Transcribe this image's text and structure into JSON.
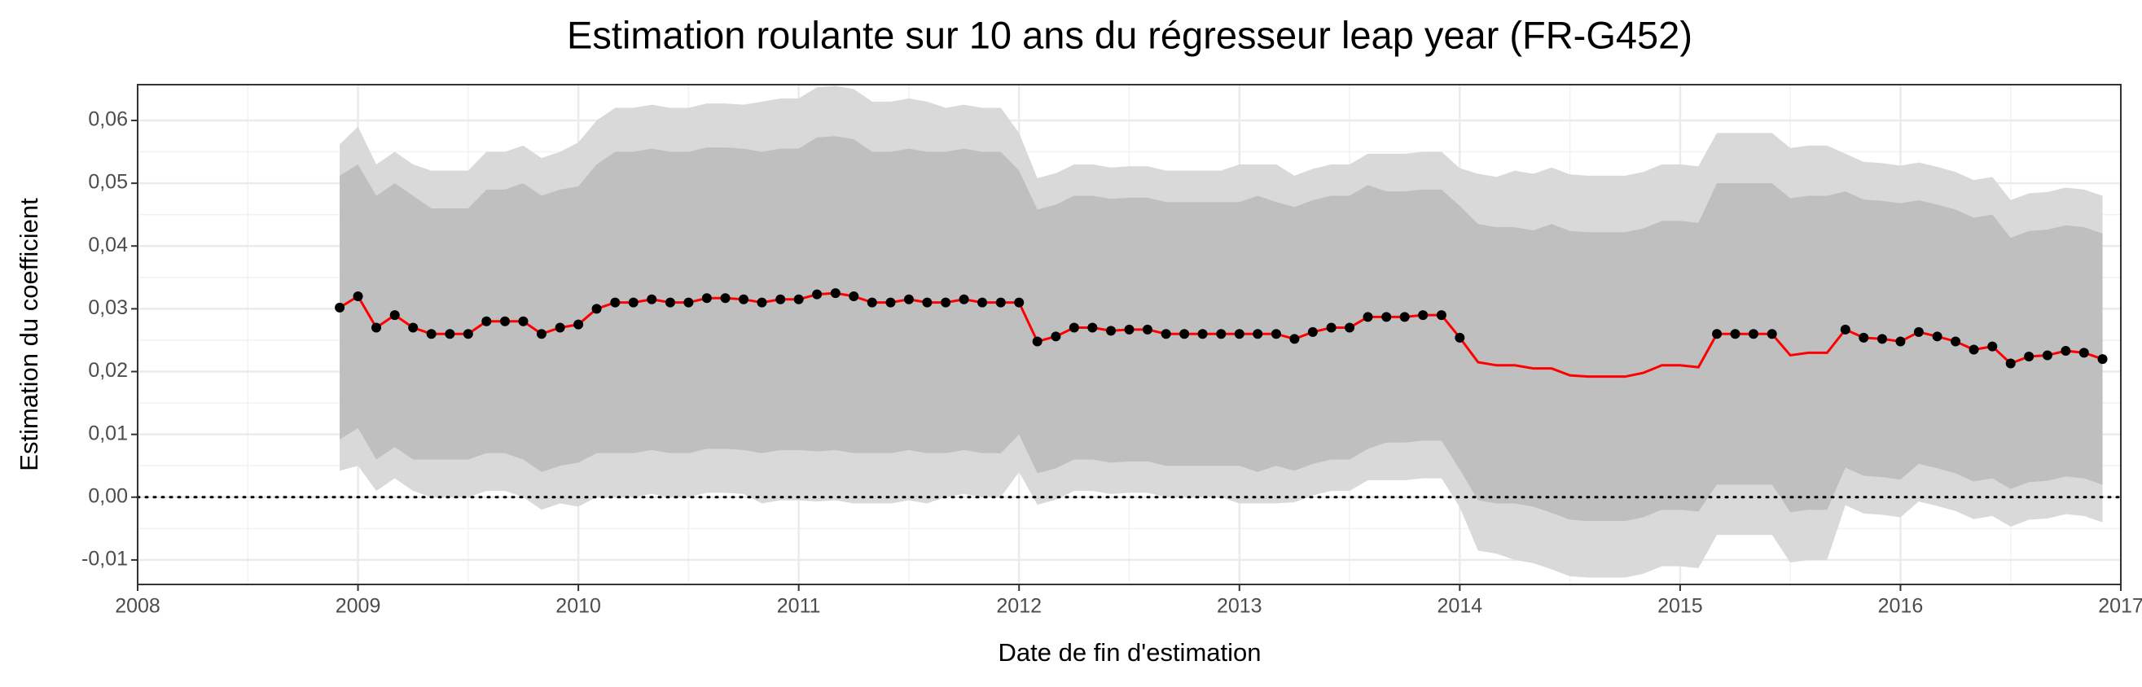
{
  "chart_data": {
    "type": "line",
    "title": "Estimation roulante sur 10 ans du régresseur leap year (FR-G452)",
    "x_label": "Date de fin d'estimation",
    "y_label": "Estimation du coefficient",
    "x": [
      2008.917,
      2009.0,
      2009.083,
      2009.167,
      2009.25,
      2009.333,
      2009.417,
      2009.5,
      2009.583,
      2009.667,
      2009.75,
      2009.833,
      2009.917,
      2010.0,
      2010.083,
      2010.167,
      2010.25,
      2010.333,
      2010.417,
      2010.5,
      2010.583,
      2010.667,
      2010.75,
      2010.833,
      2010.917,
      2011.0,
      2011.083,
      2011.167,
      2011.25,
      2011.333,
      2011.417,
      2011.5,
      2011.583,
      2011.667,
      2011.75,
      2011.833,
      2011.917,
      2012.0,
      2012.083,
      2012.167,
      2012.25,
      2012.333,
      2012.417,
      2012.5,
      2012.583,
      2012.667,
      2012.75,
      2012.833,
      2012.917,
      2013.0,
      2013.083,
      2013.167,
      2013.25,
      2013.333,
      2013.417,
      2013.5,
      2013.583,
      2013.667,
      2013.75,
      2013.833,
      2013.917,
      2014.0,
      2014.083,
      2014.167,
      2014.25,
      2014.333,
      2014.417,
      2014.5,
      2014.583,
      2014.667,
      2014.75,
      2014.833,
      2014.917,
      2015.0,
      2015.083,
      2015.167,
      2015.25,
      2015.333,
      2015.417,
      2015.5,
      2015.583,
      2015.667,
      2015.75,
      2015.833,
      2015.917,
      2016.0,
      2016.083,
      2016.167,
      2016.25,
      2016.333,
      2016.417,
      2016.5,
      2016.583,
      2016.667,
      2016.75,
      2016.833,
      2016.917
    ],
    "series": [
      {
        "color": "#ff0000",
        "point_color": "#000000",
        "inner_band_color": "#bfbfbf",
        "outer_band_color": "#d9d9d9",
        "values": [
          0.0302,
          0.032,
          0.027,
          0.029,
          0.027,
          0.026,
          0.026,
          0.026,
          0.028,
          0.028,
          0.028,
          0.026,
          0.027,
          0.0275,
          0.03,
          0.031,
          0.031,
          0.0315,
          0.031,
          0.031,
          0.0317,
          0.0317,
          0.0315,
          0.031,
          0.0315,
          0.0315,
          0.0323,
          0.0325,
          0.032,
          0.031,
          0.031,
          0.0315,
          0.031,
          0.031,
          0.0315,
          0.031,
          0.031,
          0.031,
          0.0248,
          0.0256,
          0.027,
          0.027,
          0.0265,
          0.0267,
          0.0267,
          0.026,
          0.026,
          0.026,
          0.026,
          0.026,
          0.026,
          0.026,
          0.0252,
          0.0263,
          0.027,
          0.027,
          0.0287,
          0.0287,
          0.0287,
          0.029,
          0.029,
          0.0254,
          0.0215,
          0.021,
          0.021,
          0.0205,
          0.0205,
          0.0194,
          0.0192,
          0.0192,
          0.0192,
          0.0198,
          0.021,
          0.021,
          0.0207,
          0.026,
          0.026,
          0.026,
          0.026,
          0.0226,
          0.023,
          0.023,
          0.0267,
          0.0254,
          0.0252,
          0.0248,
          0.0263,
          0.0256,
          0.0248,
          0.0235,
          0.024,
          0.0213,
          0.0224,
          0.0226,
          0.0233,
          0.023,
          0.022
        ],
        "inner_error": [
          0.021,
          0.021,
          0.021,
          0.021,
          0.021,
          0.02,
          0.02,
          0.02,
          0.021,
          0.021,
          0.022,
          0.022,
          0.022,
          0.022,
          0.023,
          0.024,
          0.024,
          0.024,
          0.024,
          0.024,
          0.024,
          0.024,
          0.024,
          0.024,
          0.024,
          0.024,
          0.025,
          0.025,
          0.025,
          0.024,
          0.024,
          0.024,
          0.024,
          0.024,
          0.024,
          0.024,
          0.024,
          0.021,
          0.021,
          0.021,
          0.021,
          0.021,
          0.021,
          0.021,
          0.021,
          0.021,
          0.021,
          0.021,
          0.021,
          0.021,
          0.022,
          0.021,
          0.021,
          0.021,
          0.021,
          0.021,
          0.021,
          0.02,
          0.02,
          0.02,
          0.02,
          0.021,
          0.022,
          0.022,
          0.022,
          0.022,
          0.023,
          0.023,
          0.023,
          0.023,
          0.023,
          0.023,
          0.023,
          0.023,
          0.023,
          0.024,
          0.024,
          0.024,
          0.024,
          0.025,
          0.025,
          0.025,
          0.022,
          0.022,
          0.022,
          0.022,
          0.021,
          0.021,
          0.021,
          0.021,
          0.021,
          0.02,
          0.02,
          0.02,
          0.02,
          0.02,
          0.02
        ],
        "outer_error": [
          0.026,
          0.027,
          0.026,
          0.026,
          0.026,
          0.026,
          0.026,
          0.026,
          0.027,
          0.027,
          0.028,
          0.028,
          0.028,
          0.029,
          0.03,
          0.031,
          0.031,
          0.031,
          0.031,
          0.031,
          0.031,
          0.031,
          0.031,
          0.032,
          0.032,
          0.032,
          0.033,
          0.033,
          0.033,
          0.032,
          0.032,
          0.032,
          0.032,
          0.031,
          0.031,
          0.031,
          0.031,
          0.027,
          0.026,
          0.026,
          0.026,
          0.026,
          0.026,
          0.026,
          0.026,
          0.026,
          0.026,
          0.026,
          0.026,
          0.027,
          0.027,
          0.027,
          0.026,
          0.026,
          0.026,
          0.026,
          0.026,
          0.026,
          0.026,
          0.026,
          0.026,
          0.027,
          0.03,
          0.03,
          0.031,
          0.031,
          0.032,
          0.032,
          0.032,
          0.032,
          0.032,
          0.032,
          0.032,
          0.032,
          0.032,
          0.032,
          0.032,
          0.032,
          0.032,
          0.033,
          0.033,
          0.033,
          0.028,
          0.028,
          0.028,
          0.028,
          0.027,
          0.027,
          0.027,
          0.027,
          0.027,
          0.026,
          0.026,
          0.026,
          0.026,
          0.026,
          0.026
        ]
      }
    ],
    "xlim": [
      2008,
      2017
    ],
    "xticks": [
      2008,
      2009,
      2010,
      2011,
      2012,
      2013,
      2014,
      2015,
      2016,
      2017
    ],
    "ylim": [
      -0.0139,
      0.0657
    ],
    "yticks": [
      {
        "value": -0.01,
        "label": "-0,01"
      },
      {
        "value": 0,
        "label": "0,00"
      },
      {
        "value": 0.01,
        "label": "0,01"
      },
      {
        "value": 0.02,
        "label": "0,02"
      },
      {
        "value": 0.03,
        "label": "0,03"
      },
      {
        "value": 0.04,
        "label": "0,04"
      },
      {
        "value": 0.05,
        "label": "0,05"
      },
      {
        "value": 0.06,
        "label": "0,06"
      }
    ],
    "hline": 0,
    "grid": true
  }
}
